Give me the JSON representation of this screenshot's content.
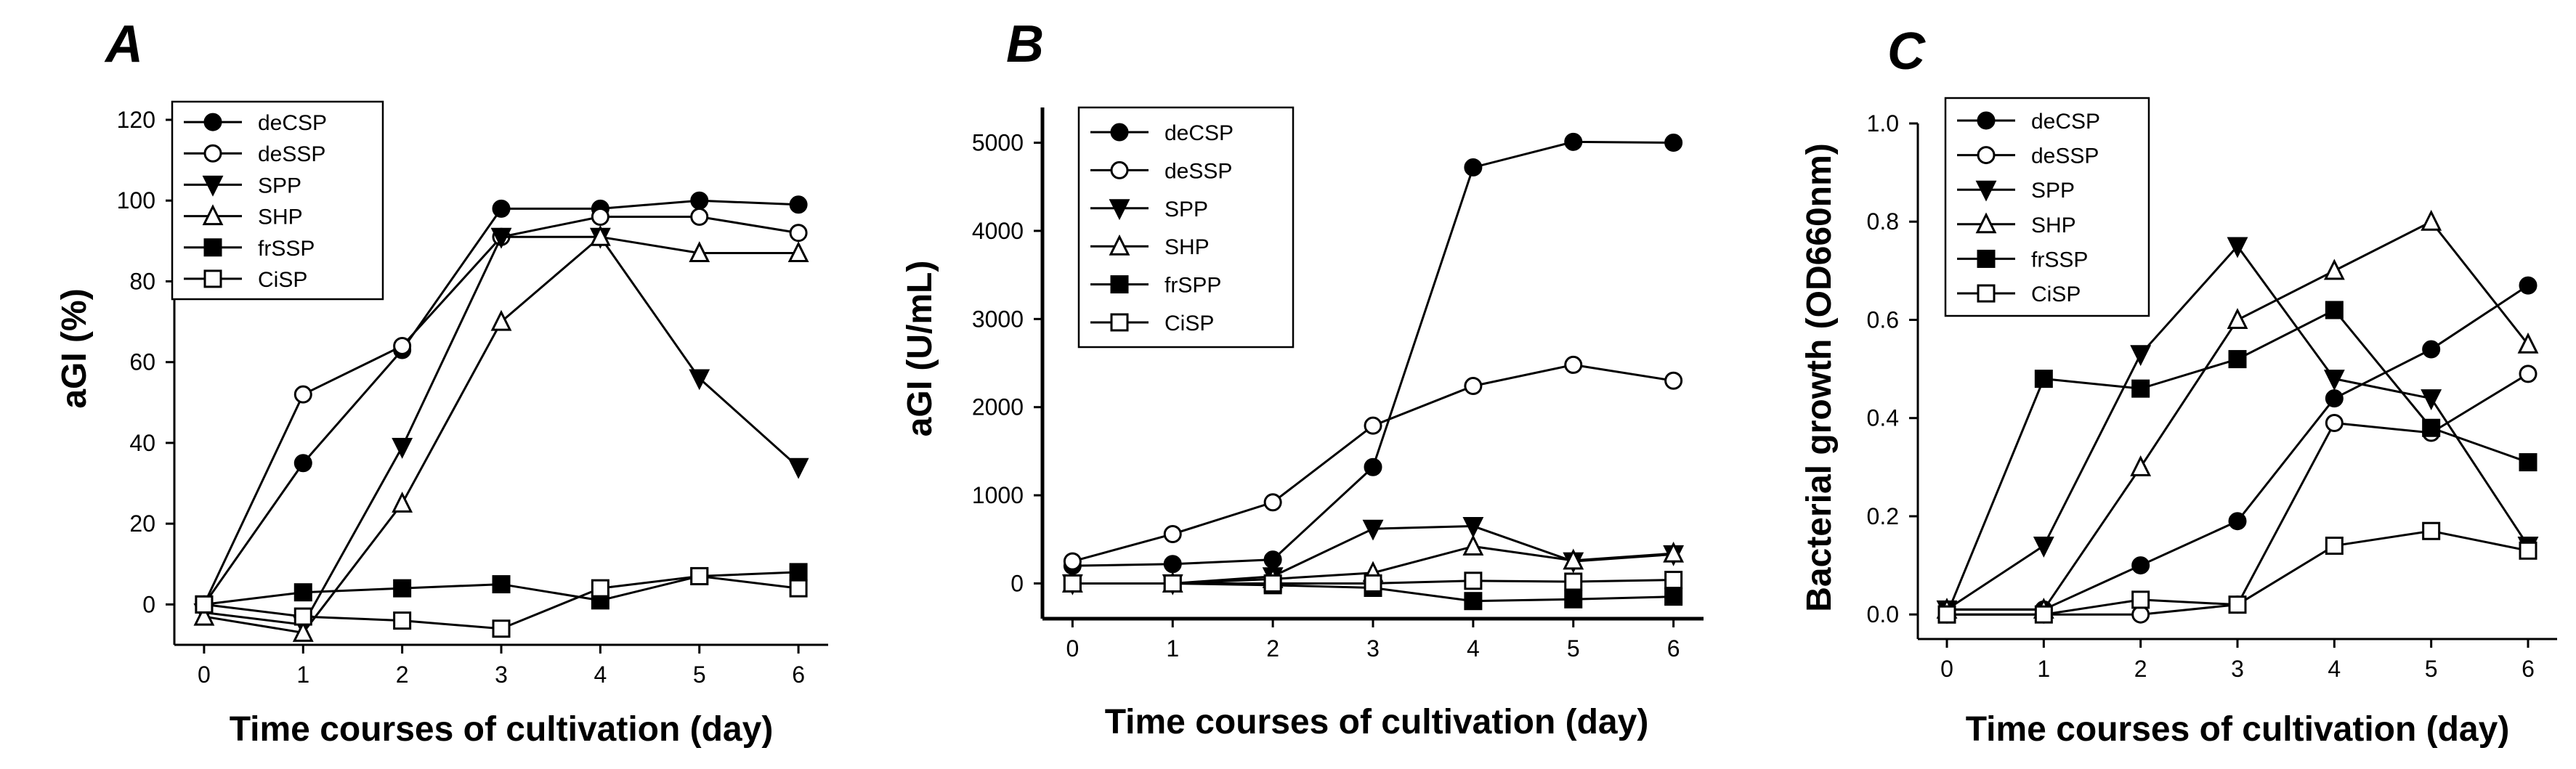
{
  "chart_data": [
    {
      "type": "line",
      "panel_label": "A",
      "xlabel": "Time courses of cultivation (day)",
      "ylabel": "aGI (%)",
      "x": [
        0,
        1,
        2,
        3,
        4,
        5,
        6
      ],
      "xticks": [
        "0",
        "1",
        "2",
        "3",
        "4",
        "5",
        "6"
      ],
      "xlim": [
        -0.3,
        6.3
      ],
      "ylim": [
        -10,
        120
      ],
      "yticks": [
        "0",
        "20",
        "40",
        "60",
        "80",
        "100",
        "120"
      ],
      "yticks_values": [
        0,
        20,
        40,
        60,
        80,
        100,
        120
      ],
      "legend_position": "top-left",
      "series": [
        {
          "name": "deCSP",
          "marker": "circle",
          "filled": true,
          "values": [
            0,
            35,
            63,
            98,
            98,
            100,
            99
          ]
        },
        {
          "name": "deSSP",
          "marker": "circle",
          "filled": false,
          "values": [
            0,
            52,
            64,
            91,
            96,
            96,
            92
          ]
        },
        {
          "name": "SPP",
          "marker": "triangle-down",
          "filled": true,
          "values": [
            -2,
            -5,
            39,
            91,
            91,
            56,
            34
          ]
        },
        {
          "name": "SHP",
          "marker": "triangle-up",
          "filled": false,
          "values": [
            -3,
            -7,
            25,
            70,
            91,
            87,
            87
          ]
        },
        {
          "name": "frSSP",
          "marker": "square",
          "filled": true,
          "values": [
            0,
            3,
            4,
            5,
            1,
            7,
            8
          ]
        },
        {
          "name": "CiSP",
          "marker": "square",
          "filled": false,
          "values": [
            0,
            -3,
            -4,
            -6,
            4,
            7,
            4
          ]
        }
      ]
    },
    {
      "type": "line",
      "panel_label": "B",
      "xlabel": "Time courses of cultivation (day)",
      "ylabel": "aGI (U/mL)",
      "x": [
        0,
        1,
        2,
        3,
        4,
        5,
        6
      ],
      "xticks": [
        "0",
        "1",
        "2",
        "3",
        "4",
        "5",
        "6"
      ],
      "xlim": [
        -0.3,
        6.3
      ],
      "ylim": [
        -400,
        5400
      ],
      "yticks": [
        "0",
        "1000",
        "2000",
        "3000",
        "4000",
        "5000"
      ],
      "yticks_values": [
        0,
        1000,
        2000,
        3000,
        4000,
        5000
      ],
      "legend_position": "top-left",
      "series": [
        {
          "name": "deCSP",
          "marker": "circle",
          "filled": true,
          "values": [
            200,
            220,
            270,
            1320,
            4720,
            5010,
            5000
          ]
        },
        {
          "name": "deSSP",
          "marker": "circle",
          "filled": false,
          "values": [
            250,
            560,
            920,
            1790,
            2240,
            2480,
            2300
          ]
        },
        {
          "name": "SPP",
          "marker": "triangle-down",
          "filled": true,
          "values": [
            0,
            0,
            80,
            620,
            650,
            250,
            330
          ]
        },
        {
          "name": "SHP",
          "marker": "triangle-up",
          "filled": false,
          "values": [
            0,
            0,
            50,
            120,
            420,
            260,
            340
          ]
        },
        {
          "name": "frSPP",
          "marker": "square",
          "filled": true,
          "values": [
            0,
            0,
            -20,
            -50,
            -200,
            -180,
            -150
          ]
        },
        {
          "name": "CiSP",
          "marker": "square",
          "filled": false,
          "values": [
            0,
            0,
            0,
            0,
            30,
            20,
            40
          ]
        }
      ]
    },
    {
      "type": "line",
      "panel_label": "C",
      "xlabel": "Time courses of cultivation (day)",
      "ylabel": "Bacterial growth (OD660nm)",
      "x": [
        0,
        1,
        2,
        3,
        4,
        5,
        6
      ],
      "xticks": [
        "0",
        "1",
        "2",
        "3",
        "4",
        "5",
        "6"
      ],
      "xlim": [
        -0.3,
        6.3
      ],
      "ylim": [
        -0.05,
        1.0
      ],
      "yticks": [
        "0.0",
        "0.2",
        "0.4",
        "0.6",
        "0.8",
        "1.0"
      ],
      "yticks_values": [
        0,
        0.2,
        0.4,
        0.6,
        0.8,
        1.0
      ],
      "legend_position": "top-left",
      "series": [
        {
          "name": "deCSP",
          "marker": "circle",
          "filled": true,
          "values": [
            0.01,
            0.01,
            0.1,
            0.19,
            0.44,
            0.54,
            0.67
          ]
        },
        {
          "name": "deSSP",
          "marker": "circle",
          "filled": false,
          "values": [
            0.0,
            0.0,
            0.0,
            0.02,
            0.39,
            0.37,
            0.49
          ]
        },
        {
          "name": "SPP",
          "marker": "triangle-down",
          "filled": true,
          "values": [
            0.01,
            0.14,
            0.53,
            0.75,
            0.48,
            0.44,
            0.14
          ]
        },
        {
          "name": "SHP",
          "marker": "triangle-up",
          "filled": false,
          "values": [
            0.01,
            0.01,
            0.3,
            0.6,
            0.7,
            0.8,
            0.55
          ]
        },
        {
          "name": "frSSP",
          "marker": "square",
          "filled": true,
          "values": [
            0.0,
            0.48,
            0.46,
            0.52,
            0.62,
            0.38,
            0.31
          ]
        },
        {
          "name": "CiSP",
          "marker": "square",
          "filled": false,
          "values": [
            0.0,
            0.0,
            0.03,
            0.02,
            0.14,
            0.17,
            0.13
          ]
        }
      ]
    }
  ]
}
